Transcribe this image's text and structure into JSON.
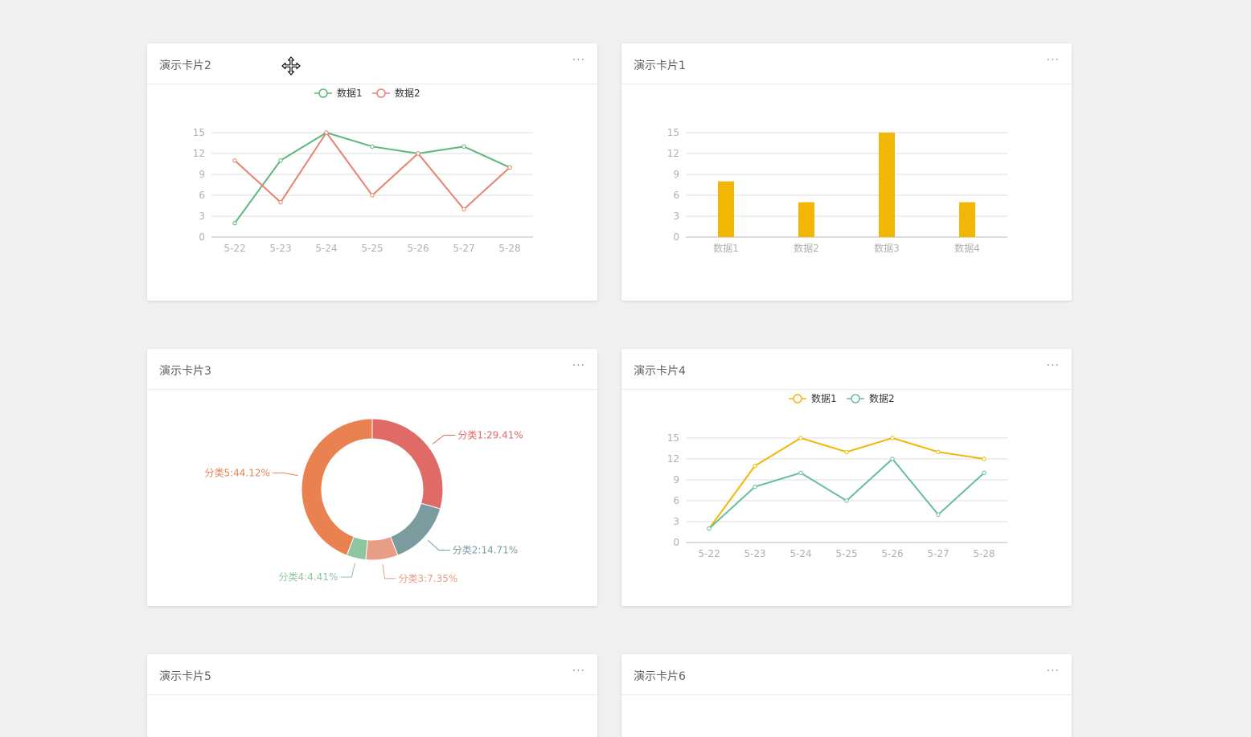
{
  "cards": [
    {
      "title": "演示卡片2",
      "more": "···"
    },
    {
      "title": "演示卡片1",
      "more": "···"
    },
    {
      "title": "演示卡片3",
      "more": "···"
    },
    {
      "title": "演示卡片4",
      "more": "···"
    },
    {
      "title": "演示卡片5",
      "more": "···"
    },
    {
      "title": "演示卡片6",
      "more": "···"
    }
  ],
  "colors": {
    "green": "#5cb87a",
    "red": "#e8836f",
    "yellow": "#f2b705",
    "teal": "#66bf9a",
    "pie1": "#e06b66",
    "pie2": "#7a9c9f",
    "pie3": "#e89d85",
    "pie4": "#8fc5a1",
    "pie5": "#e98150"
  },
  "icons": {
    "cursor": "move-cursor-icon"
  },
  "chart_data": [
    {
      "card": "演示卡片2",
      "type": "line",
      "categories": [
        "5-22",
        "5-23",
        "5-24",
        "5-25",
        "5-26",
        "5-27",
        "5-28"
      ],
      "series": [
        {
          "name": "数据1",
          "values": [
            2,
            11,
            15,
            13,
            12,
            13,
            10
          ],
          "color": "#5cb87a"
        },
        {
          "name": "数据2",
          "values": [
            11,
            5,
            15,
            6,
            12,
            4,
            10
          ],
          "color": "#e8836f"
        }
      ],
      "yticks": [
        "0",
        "3",
        "6",
        "9",
        "12",
        "15"
      ],
      "ylim": [
        0,
        15
      ],
      "grid": true,
      "legend": "top-center"
    },
    {
      "card": "演示卡片1",
      "type": "bar",
      "categories": [
        "数据1",
        "数据2",
        "数据3",
        "数据4"
      ],
      "values": [
        8,
        5,
        15,
        5
      ],
      "color": "#f2b705",
      "yticks": [
        "0",
        "3",
        "6",
        "9",
        "12",
        "15"
      ],
      "ylim": [
        0,
        15
      ],
      "grid": true
    },
    {
      "card": "演示卡片3",
      "type": "pie",
      "donut": true,
      "slices": [
        {
          "name": "分类1",
          "value": 29.41,
          "label": "分类1:29.41%",
          "color": "#e06b66"
        },
        {
          "name": "分类2",
          "value": 14.71,
          "label": "分类2:14.71%",
          "color": "#7a9c9f"
        },
        {
          "name": "分类3",
          "value": 7.35,
          "label": "分类3:7.35%",
          "color": "#e89d85"
        },
        {
          "name": "分类4",
          "value": 4.41,
          "label": "分类4:4.41%",
          "color": "#8fc5a1"
        },
        {
          "name": "分类5",
          "value": 44.12,
          "label": "分类5:44.12%",
          "color": "#e98150"
        }
      ]
    },
    {
      "card": "演示卡片4",
      "type": "line",
      "categories": [
        "5-22",
        "5-23",
        "5-24",
        "5-25",
        "5-26",
        "5-27",
        "5-28"
      ],
      "series": [
        {
          "name": "数据1",
          "values": [
            2,
            11,
            15,
            13,
            15,
            13,
            12
          ],
          "color": "#f2b705"
        },
        {
          "name": "数据2",
          "values": [
            2,
            8,
            10,
            6,
            12,
            4,
            10
          ],
          "color": "#66bf9a"
        }
      ],
      "yticks": [
        "0",
        "3",
        "6",
        "9",
        "12",
        "15"
      ],
      "ylim": [
        0,
        15
      ],
      "grid": true,
      "legend": "top-center"
    }
  ]
}
